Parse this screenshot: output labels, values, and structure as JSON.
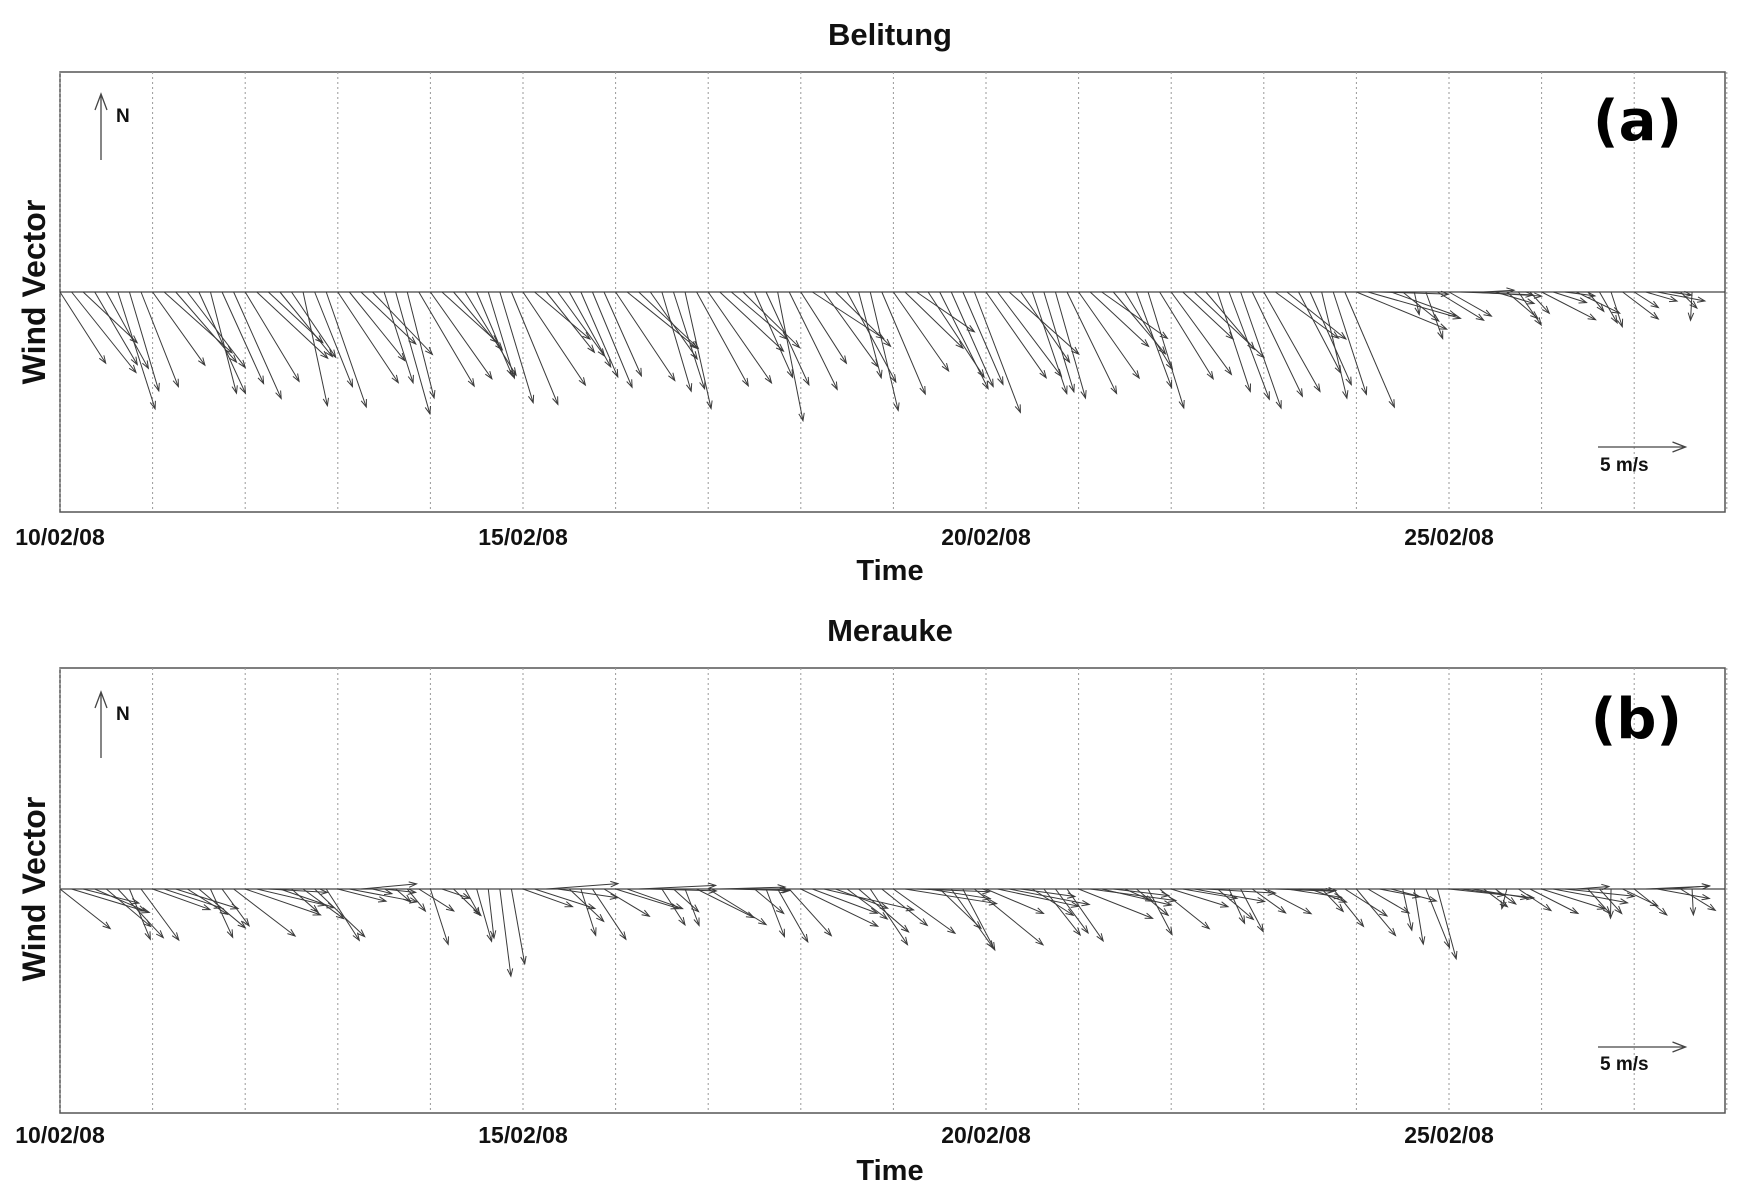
{
  "chart_data": [
    {
      "type": "vector",
      "title": "Belitung",
      "panel_label": "(a)",
      "xlabel": "Time",
      "ylabel": "Wind Vector",
      "north_label": "N",
      "scale_label": "5 m/s",
      "scale_value": 5,
      "units": "m/s",
      "x_range": [
        "10/02/08",
        "28/02/08"
      ],
      "x_ticks": [
        "10/02/08",
        "15/02/08",
        "20/02/08",
        "25/02/08"
      ],
      "grid": "vertical dotted lines, daily",
      "sampling": "3-hourly",
      "segments": [
        {
          "start_day": 0.0,
          "end_day": 13.9,
          "u": 2.7,
          "v": -4.8,
          "u_amp": 0.8,
          "v_amp": 1.5
        },
        {
          "start_day": 13.9,
          "end_day": 14.5,
          "u": 3.6,
          "v": -1.6,
          "u_amp": 1.2,
          "v_amp": 1.3
        },
        {
          "start_day": 14.5,
          "end_day": 16.1,
          "u": 2.2,
          "v": -1.2,
          "u_amp": 1.5,
          "v_amp": 1.0
        },
        {
          "start_day": 16.1,
          "end_day": 18.0,
          "u": 1.6,
          "v": -1.4,
          "u_amp": 1.0,
          "v_amp": 0.9
        }
      ]
    },
    {
      "type": "vector",
      "title": "Merauke",
      "panel_label": "(b)",
      "xlabel": "Time",
      "ylabel": "Wind Vector",
      "north_label": "N",
      "scale_label": "5 m/s",
      "scale_value": 5,
      "units": "m/s",
      "x_range": [
        "10/02/08",
        "28/02/08"
      ],
      "x_ticks": [
        "10/02/08",
        "15/02/08",
        "20/02/08",
        "25/02/08"
      ],
      "grid": "vertical dotted lines, daily",
      "sampling": "3-hourly",
      "segments": [
        {
          "start_day": 0.0,
          "end_day": 3.0,
          "u": 3.0,
          "v": -1.6,
          "u_amp": 1.2,
          "v_amp": 1.0
        },
        {
          "start_day": 3.0,
          "end_day": 4.0,
          "u": 2.0,
          "v": -0.7,
          "u_amp": 1.5,
          "v_amp": 0.8
        },
        {
          "start_day": 4.0,
          "end_day": 5.0,
          "u": 1.2,
          "v": -2.3,
          "u_amp": 1.0,
          "v_amp": 1.6
        },
        {
          "start_day": 5.0,
          "end_day": 8.0,
          "u": 2.6,
          "v": -1.3,
          "u_amp": 1.2,
          "v_amp": 1.0
        },
        {
          "start_day": 8.0,
          "end_day": 11.0,
          "u": 3.2,
          "v": -2.0,
          "u_amp": 1.2,
          "v_amp": 1.1
        },
        {
          "start_day": 11.0,
          "end_day": 14.0,
          "u": 2.8,
          "v": -1.2,
          "u_amp": 1.2,
          "v_amp": 0.9
        },
        {
          "start_day": 14.0,
          "end_day": 15.0,
          "u": 1.8,
          "v": -2.2,
          "u_amp": 1.0,
          "v_amp": 1.4
        },
        {
          "start_day": 15.0,
          "end_day": 18.0,
          "u": 2.0,
          "v": -1.0,
          "u_amp": 1.3,
          "v_amp": 0.9
        }
      ]
    }
  ]
}
